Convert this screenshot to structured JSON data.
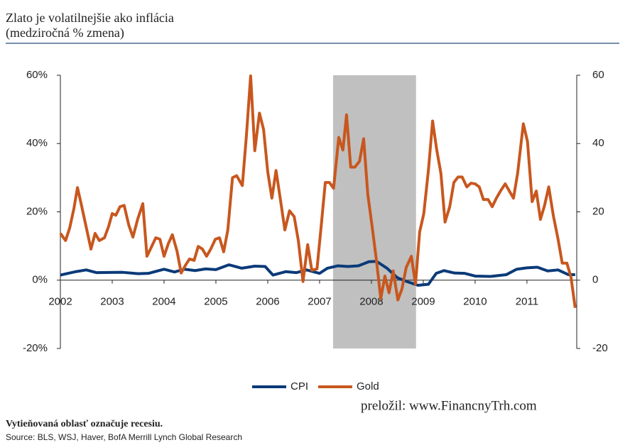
{
  "chart_data": {
    "type": "line",
    "title": "Zlato je volatilnejšie ako inflácia",
    "subtitle": "(medziročná % zmena)",
    "note": "Vytieňovaná oblasť označuje recesiu.",
    "source": "Source: BLS, WSJ, Haver, BofA Merrill Lynch Global Research",
    "credit": "preložil: www.FinancnyTrh.com",
    "shaded_region": [
      2007.26,
      2008.86
    ],
    "xlim": [
      2002,
      2011.96
    ],
    "xticks": [
      2002,
      2003,
      2004,
      2005,
      2006,
      2007,
      2008,
      2009,
      2010,
      2011
    ],
    "ylim": [
      -20,
      60
    ],
    "yticks": [
      {
        "value": -20,
        "label": "-20%"
      },
      {
        "value": 0,
        "label": "0%"
      },
      {
        "value": 20,
        "label": "20%"
      },
      {
        "value": 40,
        "label": "40%"
      },
      {
        "value": 60,
        "label": "60%"
      }
    ],
    "y2lim": [
      -20,
      60
    ],
    "y2ticks": [
      -20,
      0,
      20,
      40,
      60
    ],
    "grid": false,
    "legend": "bottom",
    "series": [
      {
        "name": "CPI",
        "color": "#0a3a78",
        "x": [
          2002.0,
          2002.3,
          2002.5,
          2002.7,
          2003.2,
          2003.5,
          2003.7,
          2004.0,
          2004.2,
          2004.4,
          2004.6,
          2004.8,
          2005.0,
          2005.25,
          2005.5,
          2005.75,
          2005.95,
          2006.1,
          2006.35,
          2006.55,
          2006.75,
          2007.0,
          2007.15,
          2007.35,
          2007.55,
          2007.75,
          2007.95,
          2008.1,
          2008.3,
          2008.5,
          2008.7,
          2008.9,
          2009.1,
          2009.25,
          2009.4,
          2009.6,
          2009.8,
          2010.0,
          2010.3,
          2010.6,
          2010.8,
          2011.0,
          2011.2,
          2011.4,
          2011.6,
          2011.8,
          2011.93
        ],
        "values": [
          1.5,
          2.5,
          3.0,
          2.2,
          2.3,
          1.9,
          2.0,
          3.2,
          2.4,
          3.2,
          2.8,
          3.3,
          3.1,
          4.5,
          3.5,
          4.1,
          4.0,
          1.5,
          2.5,
          2.2,
          3.0,
          2.0,
          3.5,
          4.2,
          4.0,
          4.2,
          5.4,
          5.5,
          3.5,
          0.7,
          -0.5,
          -1.5,
          -1.2,
          2.0,
          2.8,
          2.1,
          2.0,
          1.2,
          1.1,
          1.6,
          3.2,
          3.6,
          3.8,
          2.7,
          3.0,
          1.6,
          1.6
        ]
      },
      {
        "name": "Gold",
        "color": "#c8571e",
        "x": [
          2002.0,
          2002.1,
          2002.18,
          2002.26,
          2002.33,
          2002.4,
          2002.48,
          2002.59,
          2002.67,
          2002.75,
          2002.85,
          2002.93,
          2003.0,
          2003.07,
          2003.15,
          2003.23,
          2003.32,
          2003.4,
          2003.49,
          2003.59,
          2003.67,
          2003.75,
          2003.84,
          2003.92,
          2004.0,
          2004.08,
          2004.16,
          2004.25,
          2004.33,
          2004.41,
          2004.49,
          2004.58,
          2004.66,
          2004.74,
          2004.82,
          2004.9,
          2004.99,
          2005.07,
          2005.15,
          2005.23,
          2005.32,
          2005.4,
          2005.51,
          2005.59,
          2005.67,
          2005.75,
          2005.84,
          2005.92,
          2006.0,
          2006.08,
          2006.16,
          2006.25,
          2006.33,
          2006.42,
          2006.51,
          2006.59,
          2006.68,
          2006.77,
          2006.85,
          2006.95,
          2007.03,
          2007.11,
          2007.19,
          2007.27,
          2007.37,
          2007.45,
          2007.52,
          2007.6,
          2007.68,
          2007.77,
          2007.85,
          2007.93,
          2008.01,
          2008.1,
          2008.18,
          2008.26,
          2008.34,
          2008.42,
          2008.51,
          2008.59,
          2008.67,
          2008.77,
          2008.85,
          2008.93,
          2009.01,
          2009.1,
          2009.18,
          2009.26,
          2009.34,
          2009.42,
          2009.51,
          2009.59,
          2009.67,
          2009.75,
          2009.84,
          2009.92,
          2010.0,
          2010.08,
          2010.16,
          2010.25,
          2010.33,
          2010.41,
          2010.49,
          2010.58,
          2010.66,
          2010.74,
          2010.82,
          2010.93,
          2011.01,
          2011.1,
          2011.18,
          2011.26,
          2011.34,
          2011.42,
          2011.51,
          2011.6,
          2011.68,
          2011.77,
          2011.85,
          2011.93
        ],
        "values": [
          13.7,
          11.6,
          15.3,
          20.9,
          27.1,
          22.4,
          16.8,
          9.1,
          13.7,
          11.6,
          12.4,
          15.7,
          19.5,
          19.0,
          21.5,
          21.9,
          16.1,
          12.6,
          17.8,
          22.4,
          7.0,
          9.5,
          12.4,
          12.0,
          7.0,
          10.6,
          13.3,
          8.5,
          2.1,
          4.3,
          6.2,
          5.8,
          9.9,
          9.1,
          7.0,
          9.1,
          12.0,
          12.4,
          8.3,
          14.7,
          30.0,
          30.6,
          27.7,
          42.6,
          59.8,
          37.9,
          48.9,
          44.1,
          31.7,
          24.0,
          32.1,
          23.0,
          14.7,
          20.3,
          18.6,
          11.6,
          -0.4,
          10.4,
          2.9,
          3.3,
          15.7,
          28.6,
          28.6,
          26.9,
          41.8,
          38.1,
          48.4,
          33.1,
          33.1,
          34.8,
          41.4,
          25.1,
          16.1,
          5.4,
          -5.4,
          1.2,
          -3.7,
          2.7,
          -5.8,
          -2.5,
          3.7,
          7.0,
          -1.2,
          14.1,
          19.5,
          32.3,
          46.6,
          38.1,
          31.3,
          17.0,
          21.5,
          28.6,
          30.2,
          30.2,
          27.3,
          28.4,
          28.2,
          27.3,
          23.6,
          23.6,
          21.5,
          24.0,
          26.1,
          28.2,
          26.1,
          24.0,
          31.3,
          45.8,
          40.6,
          23.0,
          26.1,
          17.8,
          21.9,
          27.3,
          18.8,
          12.0,
          5.0,
          5.0,
          0.8,
          -8.1
        ]
      }
    ]
  }
}
